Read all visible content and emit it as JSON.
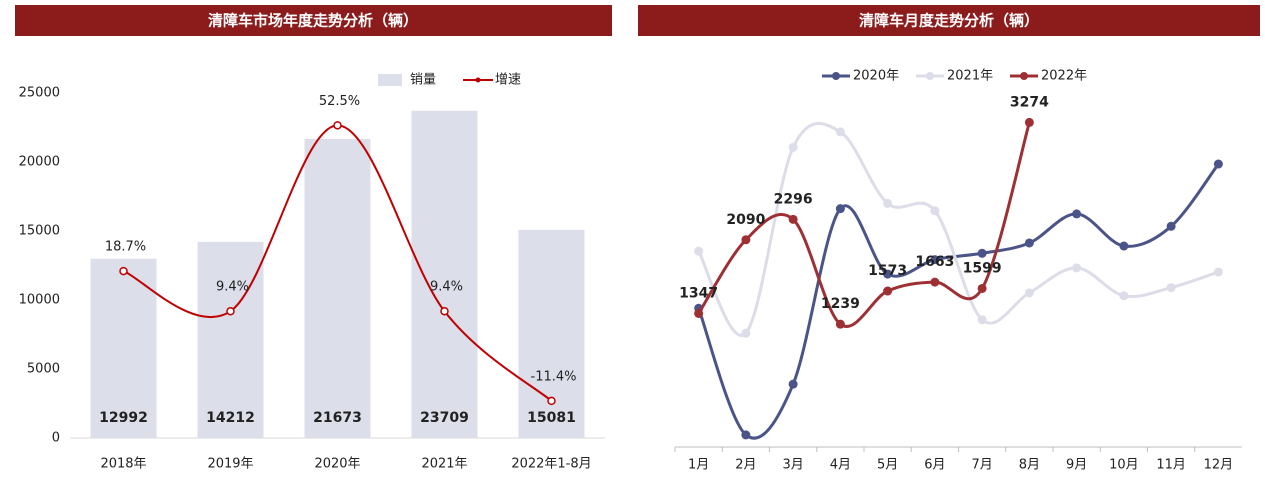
{
  "chart_data": [
    {
      "type": "bar-line",
      "title": "清障车市场年度走势分析（辆）",
      "categories": [
        "2018年",
        "2019年",
        "2020年",
        "2021年",
        "2022年1-8月"
      ],
      "series": [
        {
          "name": "销量",
          "type": "bar",
          "color": "#dcdee9",
          "values": [
            12992,
            14212,
            21673,
            23709,
            15081
          ]
        },
        {
          "name": "增速",
          "type": "line",
          "axis": "y2",
          "color": "#c00000",
          "values": [
            18.7,
            9.4,
            52.5,
            9.4,
            -11.4
          ],
          "value_labels": [
            "18.7%",
            "9.4%",
            "52.5%",
            "9.4%",
            "-11.4%"
          ]
        }
      ],
      "ylim": [
        0,
        25000
      ],
      "yticks": [
        0,
        5000,
        10000,
        15000,
        20000,
        25000
      ],
      "y2lim": [
        -20,
        60
      ],
      "legend": "top-right"
    },
    {
      "type": "line",
      "title": "清障车月度走势分析（辆）",
      "categories": [
        "1月",
        "2月",
        "3月",
        "4月",
        "5月",
        "6月",
        "7月",
        "8月",
        "9月",
        "10月",
        "11月",
        "12月"
      ],
      "series": [
        {
          "name": "2020年",
          "color": "#4a5488",
          "values": [
            1399,
            122,
            634,
            2404,
            1744,
            1890,
            1954,
            2058,
            2351,
            2027,
            2226,
            2854
          ]
        },
        {
          "name": "2021年",
          "color": "#dcdde8",
          "values": [
            1975,
            1148,
            3022,
            3178,
            2457,
            2383,
            1283,
            1555,
            1807,
            1525,
            1608,
            1765
          ]
        },
        {
          "name": "2022年",
          "color": "#9e3034",
          "data_labels": true,
          "values": [
            1347,
            2090,
            2296,
            1239,
            1573,
            1663,
            1599,
            3274,
            null,
            null,
            null,
            null
          ]
        }
      ],
      "ylim": [
        0,
        3500
      ],
      "legend": "top"
    }
  ]
}
